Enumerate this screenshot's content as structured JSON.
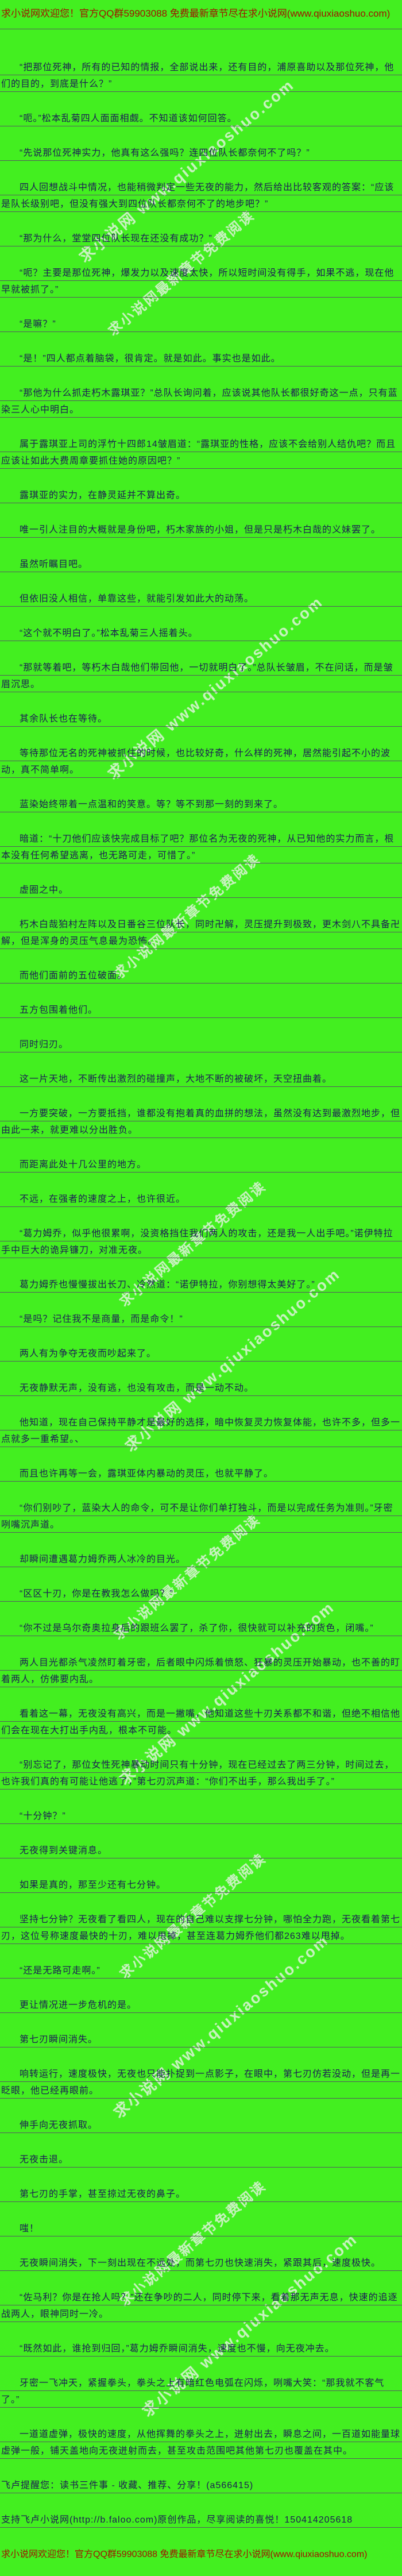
{
  "page": {
    "background_color": "#43ef20",
    "text_color": "#1c1c55",
    "banner_color": "#a01300",
    "rule_color": "#565862",
    "watermark_color": "rgba(248,250,246,0.62)"
  },
  "header": {
    "text": "求小说网欢迎您！官方QQ群59903088 免费最新章节尽在求小说网(www.qiuxiaoshuo.com)"
  },
  "watermarks": {
    "site": "求小说网 www.qiuxiaoshuo.com",
    "promo": "求小说网最新章节免费阅读"
  },
  "paragraphs": [
    {
      "indent": true,
      "text": "“把那位死神，所有的已知的情报，全部说出来，还有目的，浦原喜助以及那位死神，他们的目的，到底是什么？”"
    },
    {
      "indent": true,
      "text": "“呃。”松本乱菊四人面面相觑。不知道该如何回答。"
    },
    {
      "indent": true,
      "text": "“先说那位死神实力，他真有这么强吗？连四位队长都奈何不了吗？”"
    },
    {
      "indent": true,
      "text": "四人回想战斗中情况，也能稍微判定一些无夜的能力，然后给出比较客观的答案：“应该是队长级别吧，但没有强大到四位队长都奈何不了的地步吧？”"
    },
    {
      "indent": true,
      "text": "“那为什么，堂堂四位队长现在还没有成功？”"
    },
    {
      "indent": true,
      "text": "“呃？主要是那位死神，爆发力以及速度太快，所以短时间没有得手，如果不逃，现在他早就被抓了。”"
    },
    {
      "indent": true,
      "text": "“是嘛？”"
    },
    {
      "indent": true,
      "text": "“是！”四人都点着脑袋，很肯定。就是如此。事实也是如此。"
    },
    {
      "indent": true,
      "text": "“那他为什么抓走朽木露琪亚？”总队长询问着，应该说其他队长都很好奇这一点，只有蓝染三人心中明白。"
    },
    {
      "indent": true,
      "text": "属于露琪亚上司的浮竹十四郎14皱眉道：“露琪亚的性格，应该不会给别人结仇吧？而且应该让如此大费周章要抓住她的原因吧？”"
    },
    {
      "indent": true,
      "text": "露琪亚的实力，在静灵延并不算出奇。"
    },
    {
      "indent": true,
      "text": "唯一引人注目的大概就是身份吧，朽木家族的小姐，但是只是朽木白哉的义妹罢了。"
    },
    {
      "indent": true,
      "text": "虽然听瞩目吧。"
    },
    {
      "indent": true,
      "text": "但依旧没人相信，单靠这些，就能引发如此大的动荡。"
    },
    {
      "indent": true,
      "text": "“这个就不明白了。”松本乱菊三人摇着头。"
    },
    {
      "indent": true,
      "text": "“那就等着吧，等朽木白哉他们带回他，一切就明白了。”总队长皱眉，不在问话，而是皱眉沉思。"
    },
    {
      "indent": true,
      "text": "其余队长也在等待。"
    },
    {
      "indent": true,
      "text": "等待那位无名的死神被抓住的时候，也比较好奇，什么样的死神，居然能引起不小的波动，真不简单啊。"
    },
    {
      "indent": true,
      "text": "蓝染始终带着一点温和的笑意。等？等不到那一刻的到来了。"
    },
    {
      "indent": true,
      "text": "暗道：“十刀他们应该快完成目标了吧？那位名为无夜的死神，从已知他的实力而言，根本没有任何希望逃离，也无路可走，可惜了。”"
    },
    {
      "indent": true,
      "text": "虚圈之中。"
    },
    {
      "indent": true,
      "text": "朽木白哉狛村左阵以及日番谷三位队长，同时卍解，灵压提升到极致，更木剑八不具备卍解，但是浑身的灵压气息最为恐怖。"
    },
    {
      "indent": true,
      "text": "而他们面前的五位破面。"
    },
    {
      "indent": true,
      "text": "五方包围着他们。"
    },
    {
      "indent": true,
      "text": "同时归刃。"
    },
    {
      "indent": true,
      "text": "这一片天地，不断传出激烈的碰撞声，大地不断的被破坏，天空扭曲着。"
    },
    {
      "indent": true,
      "text": "一方要突破，一方要抵挡，谁都没有抱着真的血拼的想法，虽然没有达到最激烈地步，但由此一来，就更难以分出胜负。"
    },
    {
      "indent": true,
      "text": "而距离此处十几公里的地方。"
    },
    {
      "indent": true,
      "text": "不远，在强者的速度之上，也许很近。"
    },
    {
      "indent": true,
      "text": "“葛力姆乔，似乎他很累啊，没资格挡住我们两人的攻击，还是我一人出手吧。”诺伊特拉手中巨大的诡异镰刀，对准无夜。"
    },
    {
      "indent": true,
      "text": "葛力姆乔也慢慢拔出长刀、冷然道：“诺伊特拉，你别想得太美好了。”"
    },
    {
      "indent": true,
      "text": "“是吗？记住我不是商量，而是命令！”"
    },
    {
      "indent": true,
      "text": "两人有为争夺无夜而吵起来了。"
    },
    {
      "indent": true,
      "text": "无夜静默无声，没有逃，也没有攻击，而是一动不动。"
    },
    {
      "indent": true,
      "text": "他知道，现在自己保持平静才是最好的选择，暗中恢复灵力恢复体能，也许不多，但多一点就多一重希望。、"
    },
    {
      "indent": true,
      "text": "而且也许再等一会，露琪亚体内暴动的灵压，也就平静了。"
    },
    {
      "indent": true,
      "text": "“你们别吵了，蓝染大人的命令，可不是让你们单打独斗，而是以完成任务为准则。”牙密咧嘴沉声道。"
    },
    {
      "indent": true,
      "text": "却瞬间遭遇葛力姆乔两人冰冷的目光。"
    },
    {
      "indent": true,
      "text": "“区区十刃，你是在教我怎么做吗？”"
    },
    {
      "indent": true,
      "text": "“你不过是乌尔奇奥拉身后的跟班么罢了，杀了你，很快就可以补充的货色，闭嘴。”"
    },
    {
      "indent": true,
      "text": "两人目光都杀气凌然盯着牙密，后者眼中闪烁着愤怒、狂暴的灵压开始暴动，也不善的盯着两人，仿佛要内乱。"
    },
    {
      "indent": true,
      "text": "看着这一幕，无夜没有高兴，而是一撇嘴，他知道这些十刃关系都不和谐，但绝不相信他们会在现在大打出手内乱，根本不可能。"
    },
    {
      "indent": true,
      "text": "“别忘记了，那位女性死神暴动时间只有十分钟，现在已经过去了两三分钟，时间过去，也许我们真的有可能让他逃了，”第七刃沉声道：“你们不出手，那么我出手了。”"
    },
    {
      "indent": true,
      "text": "“十分钟？”"
    },
    {
      "indent": true,
      "text": "无夜得到关键消息。"
    },
    {
      "indent": true,
      "text": "如果是真的，那至少还有七分钟。"
    },
    {
      "indent": true,
      "text": "坚持七分钟？无夜看了看四人，现在的自己难以支撑七分钟，哪怕全力跑，无夜看着第七刃，这位号称速度最快的十刃，难以甩掉，甚至连葛力姆乔他们都263难以甩掉。"
    },
    {
      "indent": true,
      "text": "“还是无路可走啊。”"
    },
    {
      "indent": true,
      "text": "更让情况进一步危机的是。"
    },
    {
      "indent": true,
      "text": "第七刃瞬间消失。"
    },
    {
      "indent": true,
      "text": "响转运行，速度极快，无夜也只能扑捉到一点影子，在眼中，第七刃仿若没动，但是再一眨眼，他已经再眼前。"
    },
    {
      "indent": true,
      "text": "伸手向无夜抓取。"
    },
    {
      "indent": true,
      "text": "无夜击退。"
    },
    {
      "indent": true,
      "text": "第七刃的手掌，甚至掠过无夜的鼻子。"
    },
    {
      "indent": true,
      "text": "嗤！"
    },
    {
      "indent": true,
      "text": "无夜瞬间消失，下一刻出现在不远处，而第七刃也快速消失，紧跟其后，速度极快。"
    },
    {
      "indent": true,
      "text": "“佐马利？你是在抢人吗？”还在争吵的二人，同时停下来，看着那无声无息，快速的追逐战两人，眼神同时一冷。"
    },
    {
      "indent": true,
      "text": "“既然如此，谁抢到归回，”葛力姆乔瞬间消失，速度也不慢，向无夜冲去。"
    },
    {
      "indent": true,
      "text": "牙密一飞冲天，紧握拳头，拳头之上有暗红色电弧在闪烁，咧嘴大笑：“那我就不客气了。”"
    },
    {
      "indent": true,
      "text": "一道道虚弹，极快的速度，从他挥舞的拳头之上，迸射出去，瞬息之间，一百道如能量球虚弹一般，铺天盖地向无夜迸射而去，甚至攻击范围吧其他第七刃也覆盖在其中。"
    },
    {
      "indent": false,
      "text": "飞卢提醒您：读书三件事 - 收藏、推荐、分享！(a566415)"
    },
    {
      "indent": false,
      "text": "支持飞卢小说网(http://b.faloo.com)原创作品，尽享阅读的喜悦！150414205618"
    }
  ],
  "footer": {
    "text": "求小说网欢迎您！官方QQ群59903088 免费最新章节尽在求小说网(www.qiuxiaoshuo.com)"
  }
}
